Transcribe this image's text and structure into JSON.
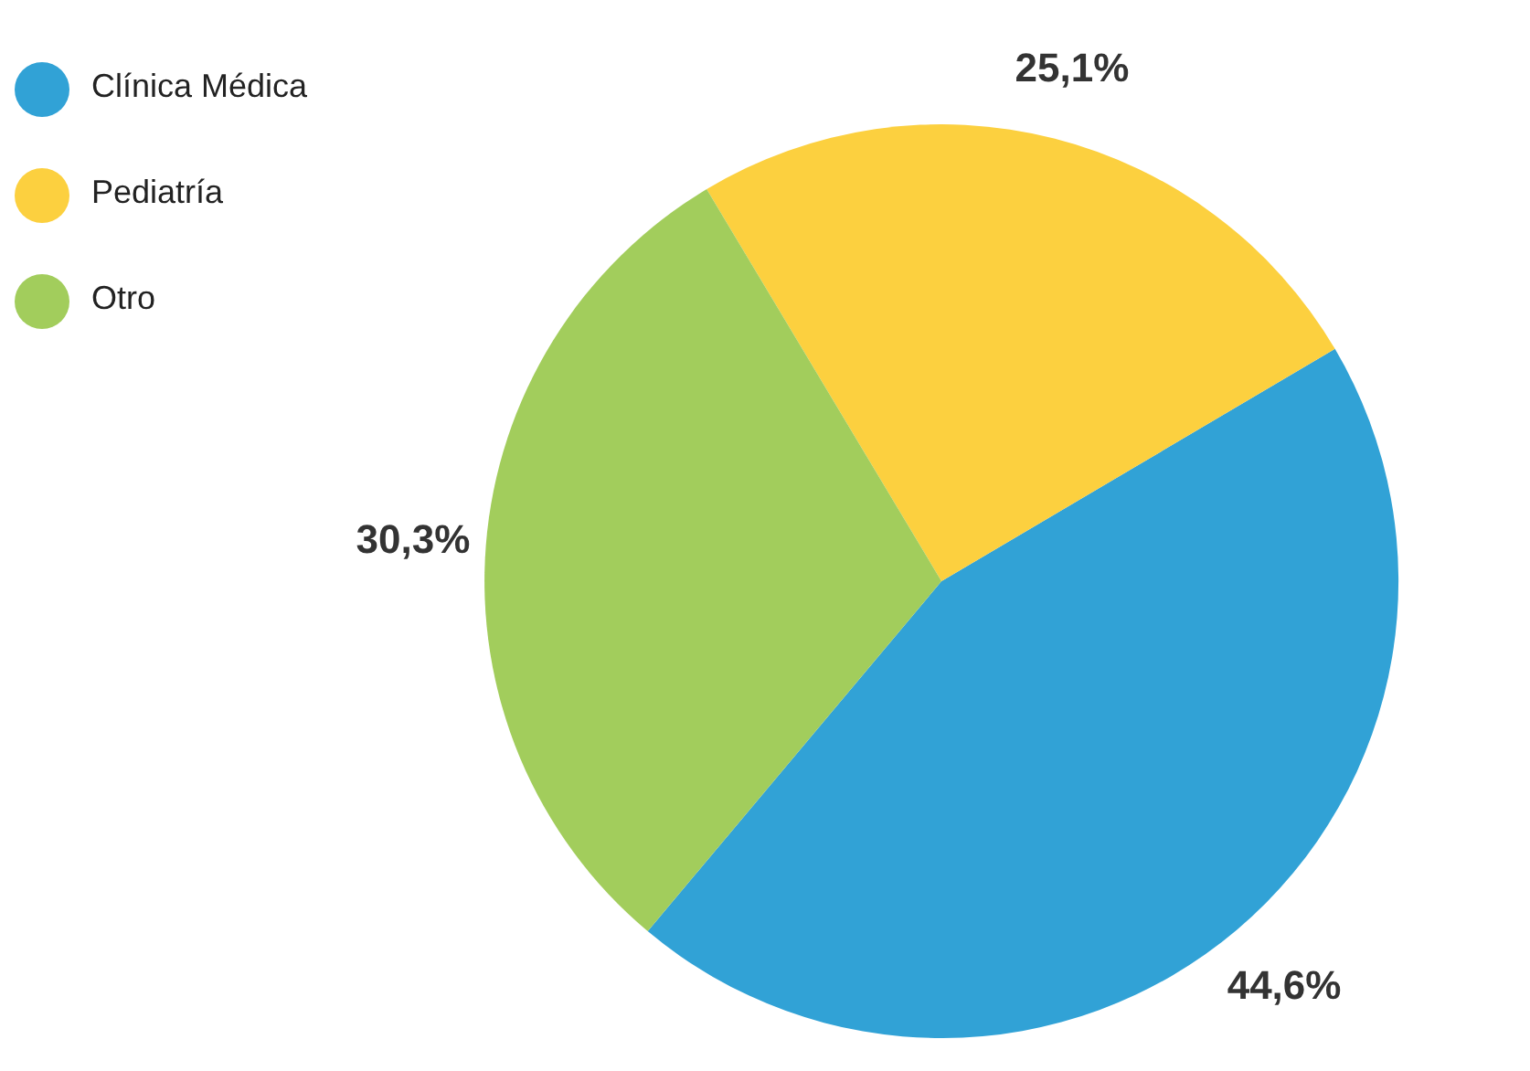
{
  "chart_data": {
    "type": "pie",
    "categories": [
      "Clínica Médica",
      "Pediatría",
      "Otro"
    ],
    "values": [
      44.6,
      25.1,
      30.3
    ],
    "colors": [
      "#31a2d6",
      "#fcd03f",
      "#a2cd5c"
    ],
    "value_labels": [
      "44,6%",
      "25,1%",
      "30,3%"
    ],
    "legend": "top left"
  }
}
